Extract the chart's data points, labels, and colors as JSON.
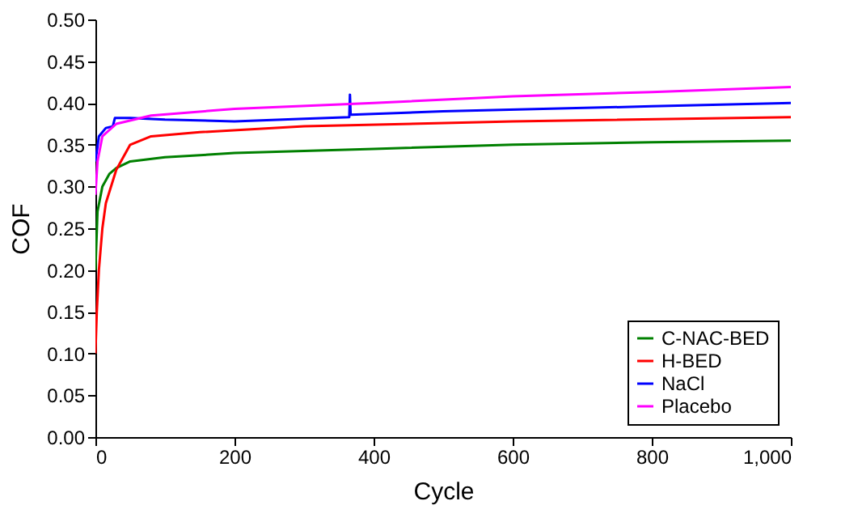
{
  "chart_data": {
    "type": "line",
    "xlabel": "Cycle",
    "ylabel": "COF",
    "xlim": [
      0,
      1000
    ],
    "ylim": [
      0,
      0.5
    ],
    "xticks": [
      0,
      200,
      400,
      600,
      800,
      {
        "value": 1000,
        "label": "1,000"
      }
    ],
    "yticks": [
      {
        "value": 0,
        "label": "0.00"
      },
      {
        "value": 0.05,
        "label": "0.05"
      },
      {
        "value": 0.1,
        "label": "0.10"
      },
      {
        "value": 0.15,
        "label": "0.15"
      },
      {
        "value": 0.2,
        "label": "0.20"
      },
      {
        "value": 0.25,
        "label": "0.25"
      },
      {
        "value": 0.3,
        "label": "0.30"
      },
      {
        "value": 0.35,
        "label": "0.35"
      },
      {
        "value": 0.4,
        "label": "0.40"
      },
      {
        "value": 0.45,
        "label": "0.45"
      },
      {
        "value": 0.5,
        "label": "0.50"
      }
    ],
    "grid": false,
    "legend": "bottom right",
    "line_style": "solid",
    "marker": "none",
    "series": [
      {
        "name": "C-NAC-BED",
        "color": "#008000",
        "x": [
          0,
          3,
          10,
          20,
          30,
          50,
          100,
          200,
          400,
          600,
          800,
          1000
        ],
        "values": [
          0.2,
          0.27,
          0.3,
          0.315,
          0.322,
          0.33,
          0.335,
          0.34,
          0.345,
          0.35,
          0.353,
          0.355
        ]
      },
      {
        "name": "H-BED",
        "color": "#ff0000",
        "x": [
          0,
          2,
          5,
          10,
          15,
          30,
          50,
          80,
          150,
          300,
          600,
          1000
        ],
        "values": [
          0.1,
          0.15,
          0.2,
          0.25,
          0.28,
          0.32,
          0.35,
          0.36,
          0.365,
          0.372,
          0.378,
          0.383
        ]
      },
      {
        "name": "NaCl",
        "color": "#0000ff",
        "x": [
          0,
          5,
          15,
          25,
          28,
          50,
          100,
          200,
          300,
          365,
          366,
          367,
          500,
          800,
          1000
        ],
        "values": [
          0.33,
          0.36,
          0.37,
          0.372,
          0.382,
          0.382,
          0.38,
          0.378,
          0.381,
          0.383,
          0.41,
          0.386,
          0.39,
          0.396,
          0.4
        ]
      },
      {
        "name": "Placebo",
        "color": "#ff00ff",
        "x": [
          0,
          3,
          10,
          30,
          80,
          200,
          400,
          600,
          800,
          1000
        ],
        "values": [
          0.29,
          0.33,
          0.36,
          0.375,
          0.385,
          0.393,
          0.4,
          0.408,
          0.413,
          0.419
        ]
      }
    ]
  }
}
